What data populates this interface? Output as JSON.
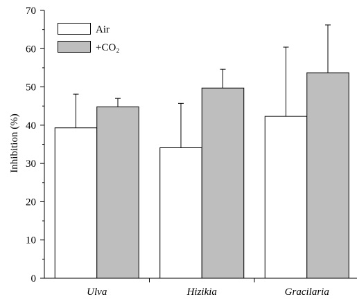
{
  "chart_data": {
    "type": "bar",
    "categories": [
      "Ulva",
      "Hizikia",
      "Gracilaria"
    ],
    "series": [
      {
        "name": "Air",
        "values": [
          39.3,
          34.1,
          42.3
        ],
        "errors": [
          8.8,
          11.6,
          18.1
        ],
        "color": "#ffffff"
      },
      {
        "name": "+CO₂",
        "values": [
          44.8,
          49.7,
          53.7
        ],
        "errors": [
          2.2,
          4.9,
          12.5
        ],
        "color": "#bebebe"
      }
    ],
    "ylabel": "Inhibition (%)",
    "ylim": [
      0,
      70
    ],
    "yticks": [
      0,
      10,
      20,
      30,
      40,
      50,
      60,
      70
    ],
    "y_minor_step": 5,
    "legend": "top-left",
    "grid": false
  }
}
